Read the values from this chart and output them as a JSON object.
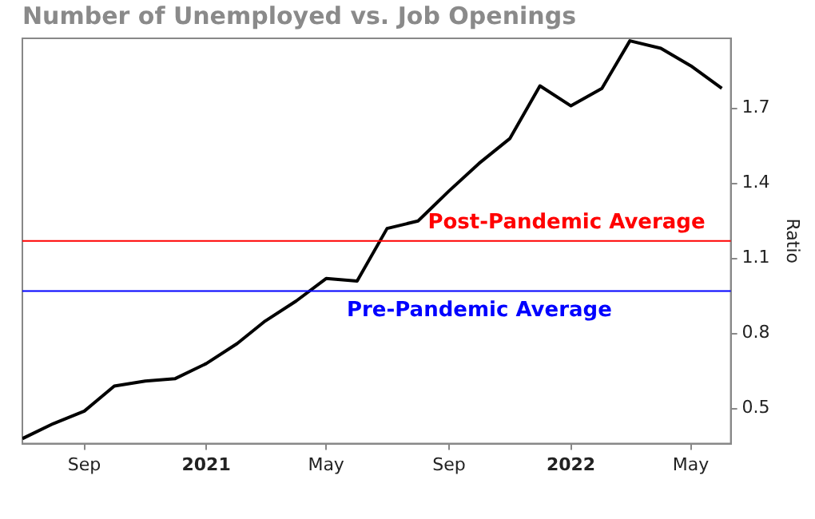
{
  "chart_data": {
    "type": "line",
    "title": "Number of Unemployed vs. Job Openings",
    "y2label": "Ratio",
    "x": [
      "2020-07",
      "2020-08",
      "2020-09",
      "2020-10",
      "2020-11",
      "2020-12",
      "2021-01",
      "2021-02",
      "2021-03",
      "2021-04",
      "2021-05",
      "2021-06",
      "2021-07",
      "2021-08",
      "2021-09",
      "2021-10",
      "2021-11",
      "2021-12",
      "2022-01",
      "2022-02",
      "2022-03",
      "2022-04",
      "2022-05",
      "2022-06"
    ],
    "series": [
      {
        "color": "#000000",
        "axis": "y2",
        "values": [
          0.38,
          0.44,
          0.49,
          0.59,
          0.61,
          0.62,
          0.68,
          0.76,
          0.85,
          0.93,
          1.02,
          1.01,
          1.22,
          1.25,
          1.37,
          1.48,
          1.58,
          1.79,
          1.71,
          1.78,
          1.97,
          1.94,
          1.87,
          1.78
        ]
      }
    ],
    "xlim": [
      "2020-07-01",
      "2022-06-10"
    ],
    "xticks": [
      {
        "value": "2020-09",
        "label": "Sep"
      },
      {
        "value": "2021-01",
        "label": "2021"
      },
      {
        "value": "2021-05",
        "label": "May"
      },
      {
        "value": "2021-09",
        "label": "Sep"
      },
      {
        "value": "2022-01",
        "label": "2022"
      },
      {
        "value": "2022-05",
        "label": "May"
      }
    ],
    "y2lim": [
      0.36,
      1.98
    ],
    "y2ticks": [
      0.5,
      0.8,
      1.1,
      1.4,
      1.7
    ],
    "ref_lines": [
      {
        "axis": "y2",
        "value": 1.17,
        "label": "Post-Pandemic Average",
        "color": "#ff0000"
      },
      {
        "axis": "y2",
        "value": 0.97,
        "label": "Pre-Pandemic Average",
        "color": "#0000ff"
      }
    ],
    "grid": false,
    "legend": false,
    "marker": "none",
    "line_style": "solid"
  }
}
